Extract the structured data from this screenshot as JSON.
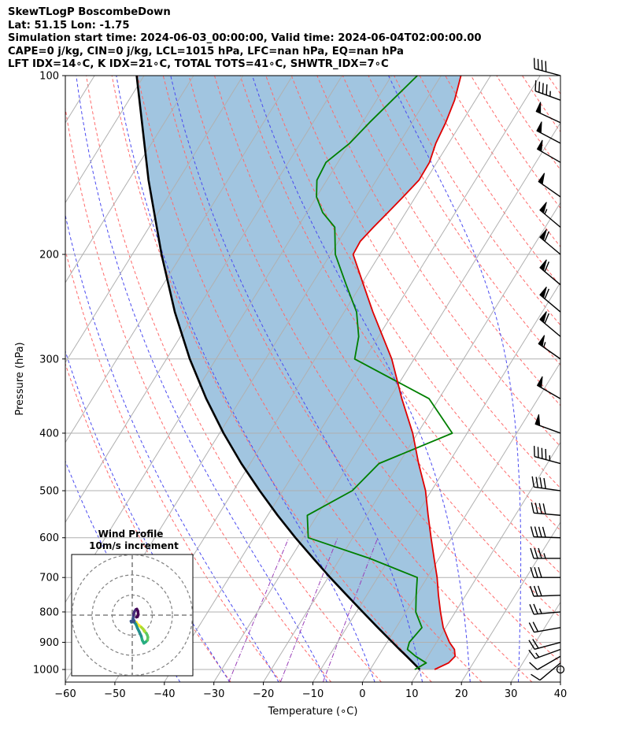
{
  "title_lines": [
    "SkewTLogP BoscombeDown",
    "Lat: 51.15   Lon: -1.75",
    "Simulation start time: 2024-06-03_00:00:00, Valid time: 2024-06-04T02:00:00.00",
    "CAPE=0 j/kg, CIN=0 j/kg, LCL=1015 hPa, LFC=nan hPa, EQ=nan hPa",
    "LFT IDX=14∘C, K IDX=21∘C, TOTAL TOTS=41∘C, SHWTR_IDX=7∘C"
  ],
  "chart_data": {
    "type": "skew-t log-p",
    "xlabel": "Temperature (∘C)",
    "ylabel": "Pressure (hPa)",
    "xlim": [
      -60,
      40
    ],
    "ylim": [
      1050,
      100
    ],
    "yscale": "log",
    "x_ticks": [
      -60,
      -50,
      -40,
      -30,
      -20,
      -10,
      0,
      10,
      20,
      30,
      40
    ],
    "x_tick_labels": [
      "−60",
      "−50",
      "−40",
      "−30",
      "−20",
      "−10",
      "0",
      "10",
      "20",
      "30",
      "40"
    ],
    "y_ticks": [
      1000,
      900,
      800,
      700,
      600,
      500,
      400,
      300,
      200,
      100
    ],
    "y_tick_labels": [
      "1000",
      "900",
      "800",
      "700",
      "600",
      "500",
      "400",
      "300",
      "200",
      "100"
    ],
    "grid": true,
    "temperature": {
      "color": "#e00000",
      "p": [
        1000,
        975,
        950,
        925,
        900,
        850,
        800,
        750,
        700,
        650,
        600,
        550,
        500,
        450,
        400,
        350,
        300,
        250,
        225,
        200,
        190,
        180,
        170,
        160,
        150,
        140,
        130,
        120,
        110,
        100
      ],
      "t": [
        13.0,
        15.0,
        15.5,
        14.5,
        12.6,
        9.5,
        7.0,
        4.5,
        2.0,
        -1.0,
        -4.2,
        -7.6,
        -11.2,
        -16.0,
        -21.0,
        -27.5,
        -34.5,
        -44.2,
        -49.5,
        -55.4,
        -55.6,
        -54.7,
        -53.6,
        -52.5,
        -51.4,
        -51.5,
        -52.6,
        -53.2,
        -54.2,
        -56.0
      ]
    },
    "dewpoint": {
      "color": "#007f00",
      "p": [
        1000,
        975,
        950,
        925,
        900,
        850,
        800,
        750,
        700,
        650,
        600,
        550,
        500,
        450,
        400,
        350,
        300,
        275,
        250,
        225,
        200,
        180,
        170,
        160,
        150,
        140,
        130,
        120,
        110,
        100
      ],
      "t": [
        9.0,
        10.5,
        7.5,
        5.0,
        4.5,
        5.2,
        2.0,
        0.0,
        -2.0,
        -14.0,
        -29.0,
        -32.0,
        -26.0,
        -24.0,
        -13.0,
        -22.0,
        -42.0,
        -44.0,
        -47.5,
        -53.0,
        -59.0,
        -62.5,
        -66.8,
        -70.0,
        -72.0,
        -72.4,
        -70.0,
        -68.6,
        -66.8,
        -64.8
      ]
    },
    "parcel": {
      "color": "#000000",
      "p": [
        1000,
        975,
        950,
        925,
        900,
        850,
        800,
        750,
        700,
        650,
        600,
        550,
        500,
        450,
        400,
        350,
        300,
        250,
        200,
        150,
        100
      ],
      "t": [
        10.0,
        7.9,
        5.7,
        3.4,
        1.1,
        -3.7,
        -8.7,
        -14.0,
        -19.6,
        -25.4,
        -31.6,
        -38.0,
        -44.7,
        -51.8,
        -59.2,
        -67.0,
        -75.3,
        -84.2,
        -94.1,
        -106.0,
        -121.5
      ]
    },
    "cape_shading_color": "#a1c5e0",
    "winds": {
      "p": [
        1000,
        975,
        950,
        925,
        900,
        850,
        800,
        750,
        700,
        650,
        600,
        550,
        500,
        450,
        400,
        350,
        300,
        275,
        250,
        225,
        200,
        180,
        160,
        140,
        130,
        120,
        110,
        100
      ],
      "speed_kt": [
        3,
        8,
        12,
        15,
        18,
        20,
        25,
        28,
        32,
        35,
        38,
        40,
        42,
        44,
        48,
        52,
        56,
        58,
        60,
        60,
        58,
        55,
        52,
        52,
        50,
        48,
        45,
        40
      ],
      "dir_deg": [
        200,
        230,
        240,
        250,
        255,
        260,
        265,
        268,
        270,
        270,
        272,
        275,
        278,
        285,
        290,
        300,
        305,
        310,
        310,
        310,
        310,
        310,
        305,
        300,
        298,
        295,
        290,
        285
      ]
    },
    "hodograph": {
      "title_lines": [
        "Wind Profile",
        "10m/s increment"
      ],
      "ring_increment_ms": 10,
      "rings": [
        10,
        20,
        30
      ],
      "u": [
        2.0,
        2.5,
        3.5,
        4.5,
        5.5,
        6.0,
        7.0,
        7.5,
        7.8,
        7.6,
        6.8,
        5.8,
        5.0,
        4.5,
        3.6,
        2.6,
        1.8,
        1.0,
        0.4,
        -0.4,
        -0.6,
        0.2,
        1.0,
        0.4,
        0.6,
        1.1,
        1.8,
        2.3,
        2.8,
        3.0,
        2.6,
        2.0
      ],
      "v": [
        -3.5,
        -4.5,
        -5.2,
        -6.0,
        -7.0,
        -8.0,
        -9.0,
        -10.0,
        -11.0,
        -12.5,
        -13.3,
        -14.0,
        -12.5,
        -10.5,
        -8.5,
        -6.5,
        -4.5,
        -3.5,
        -3.3,
        -3.5,
        -3.0,
        -3.3,
        -2.8,
        -2.0,
        0.0,
        1.8,
        2.8,
        3.0,
        2.0,
        0.2,
        -0.8,
        -1.0
      ]
    }
  }
}
